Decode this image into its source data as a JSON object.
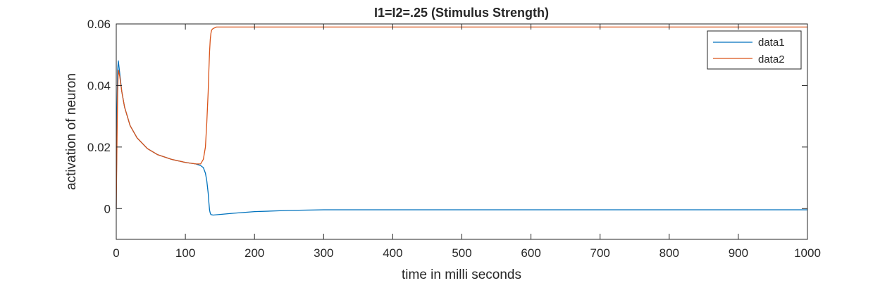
{
  "chart_data": {
    "type": "line",
    "title": "I1=I2=.25 (Stimulus Strength)",
    "xlabel": "time in milli seconds",
    "ylabel": "activation of neuron",
    "xlim": [
      0,
      1000
    ],
    "ylim": [
      -0.01,
      0.06
    ],
    "xticks": [
      0,
      100,
      200,
      300,
      400,
      500,
      600,
      700,
      800,
      900,
      1000
    ],
    "yticks": [
      0,
      0.02,
      0.04,
      0.06
    ],
    "xtick_labels": [
      "0",
      "100",
      "200",
      "300",
      "400",
      "500",
      "600",
      "700",
      "800",
      "900",
      "1000"
    ],
    "ytick_labels": [
      "0",
      "0.02",
      "0.04",
      "0.06"
    ],
    "grid": false,
    "legend_position": "top-right",
    "series": [
      {
        "name": "data1",
        "color": "#0072BD",
        "x": [
          0,
          1,
          2,
          3,
          5,
          8,
          12,
          20,
          30,
          45,
          60,
          80,
          100,
          115,
          122,
          126,
          129,
          131,
          133,
          134,
          135,
          136,
          137,
          138,
          140,
          150,
          170,
          200,
          250,
          300,
          400,
          500,
          600,
          700,
          800,
          900,
          1000
        ],
        "y": [
          0.0,
          0.03,
          0.045,
          0.048,
          0.044,
          0.038,
          0.033,
          0.027,
          0.023,
          0.0195,
          0.0175,
          0.016,
          0.015,
          0.0145,
          0.014,
          0.0133,
          0.0115,
          0.009,
          0.005,
          0.002,
          -0.0005,
          -0.0015,
          -0.002,
          -0.002,
          -0.0021,
          -0.0019,
          -0.0015,
          -0.001,
          -0.0006,
          -0.0004,
          -0.0004,
          -0.0004,
          -0.0004,
          -0.0004,
          -0.0004,
          -0.0004,
          -0.0004
        ]
      },
      {
        "name": "data2",
        "color": "#D95319",
        "x": [
          0,
          1,
          2,
          3,
          5,
          8,
          12,
          20,
          30,
          45,
          60,
          80,
          100,
          115,
          122,
          126,
          129,
          131,
          133,
          134,
          135,
          136,
          137,
          138,
          140,
          145,
          150,
          200,
          300,
          400,
          500,
          600,
          700,
          800,
          900,
          1000
        ],
        "y": [
          0.0,
          0.02,
          0.038,
          0.045,
          0.043,
          0.038,
          0.033,
          0.027,
          0.023,
          0.0195,
          0.0175,
          0.016,
          0.015,
          0.0145,
          0.0145,
          0.016,
          0.02,
          0.028,
          0.038,
          0.045,
          0.051,
          0.055,
          0.057,
          0.058,
          0.0585,
          0.059,
          0.059,
          0.059,
          0.059,
          0.059,
          0.059,
          0.059,
          0.059,
          0.059,
          0.059,
          0.059
        ]
      }
    ]
  }
}
